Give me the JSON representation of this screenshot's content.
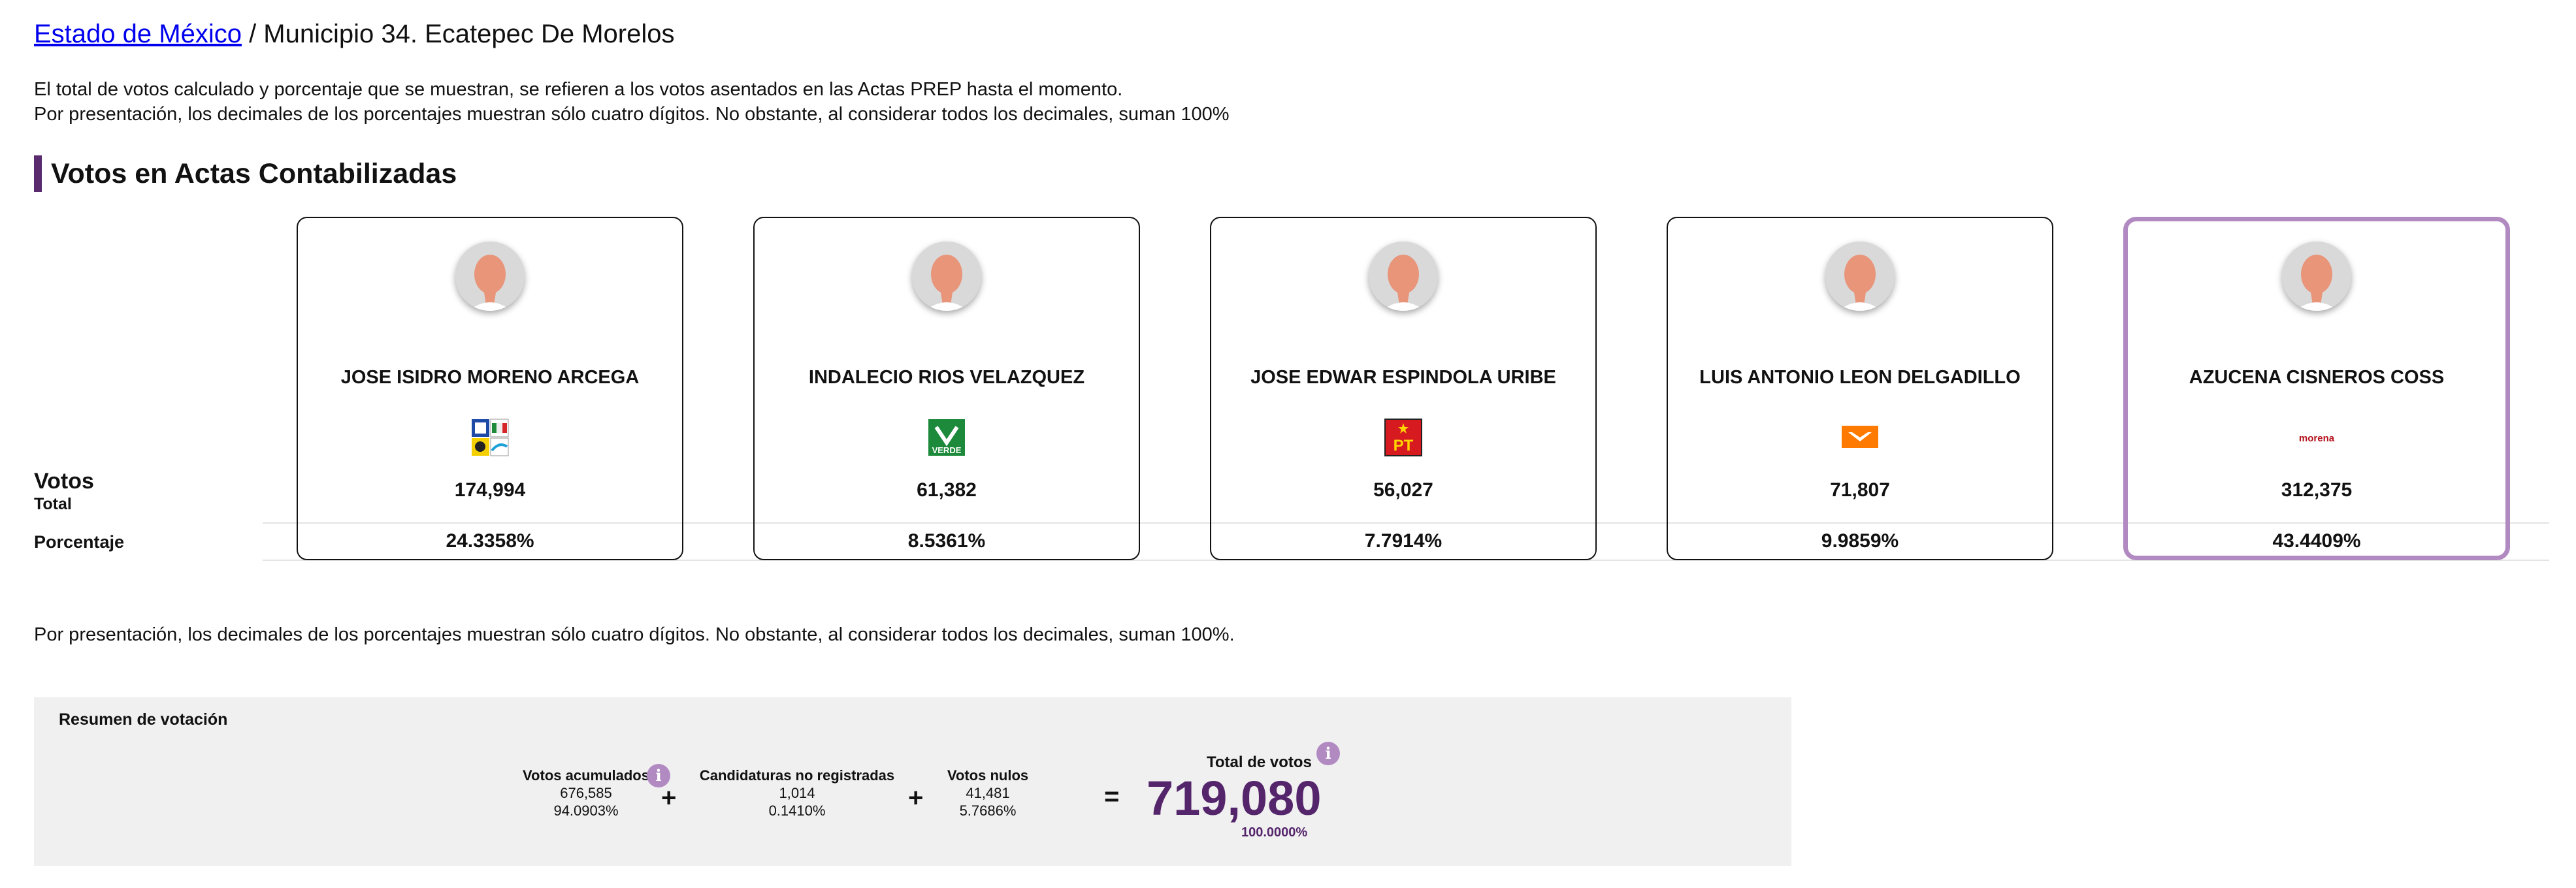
{
  "breadcrumb": {
    "state_link": "Estado de México",
    "current": " / Municipio 34. Ecatepec De Morelos"
  },
  "intro": {
    "line1": "El total de votos calculado y porcentaje que se muestran, se refieren a los votos asentados en las Actas PREP hasta el momento.",
    "line2": "Por presentación, los decimales de los porcentajes muestran sólo cuatro dígitos. No obstante, al considerar todos los decimales, suman 100%"
  },
  "section_title": "Votos en Actas Contabilizadas",
  "row_labels": {
    "votos": "Votos",
    "total": "Total",
    "porcentaje": "Porcentaje"
  },
  "candidates": [
    {
      "name": "JOSE ISIDRO MORENO ARCEGA",
      "votes": "174,994",
      "pct": "24.3358%",
      "logo_icon": "pan-pri-prd-coalition-logo-icon"
    },
    {
      "name": "INDALECIO RIOS VELAZQUEZ",
      "votes": "61,382",
      "pct": "8.5361%",
      "logo_icon": "verde-party-logo-icon",
      "logo_text": "VERDE"
    },
    {
      "name": "JOSE EDWAR ESPINDOLA URIBE",
      "votes": "56,027",
      "pct": "7.7914%",
      "logo_icon": "pt-party-logo-icon",
      "logo_text": "PT"
    },
    {
      "name": "LUIS ANTONIO LEON DELGADILLO",
      "votes": "71,807",
      "pct": "9.9859%",
      "logo_icon": "movimiento-ciudadano-logo-icon"
    },
    {
      "name": "AZUCENA CISNEROS COSS",
      "votes": "312,375",
      "pct": "43.4409%",
      "logo_icon": "morena-party-logo-icon",
      "logo_text": "morena"
    }
  ],
  "note2": "Por presentación, los decimales de los porcentajes muestran sólo cuatro dígitos. No obstante, al considerar todos los decimales, suman 100%.",
  "summary": {
    "title": "Resumen de votación",
    "acumulados": {
      "label": "Votos acumulados",
      "value": "676,585",
      "pct": "94.0903%"
    },
    "no_registradas": {
      "label": "Candidaturas no registradas",
      "value": "1,014",
      "pct": "0.1410%"
    },
    "nulos": {
      "label": "Votos nulos",
      "value": "41,481",
      "pct": "5.7686%"
    },
    "total": {
      "label": "Total de votos",
      "value": "719,080",
      "pct": "100.0000%"
    },
    "ops": {
      "plus": "+",
      "equals": "="
    },
    "info_glyph": "i"
  },
  "colors": {
    "accent": "#55256b",
    "winner_border": "#b28ac2",
    "summary_bg": "#f0f0f0"
  }
}
